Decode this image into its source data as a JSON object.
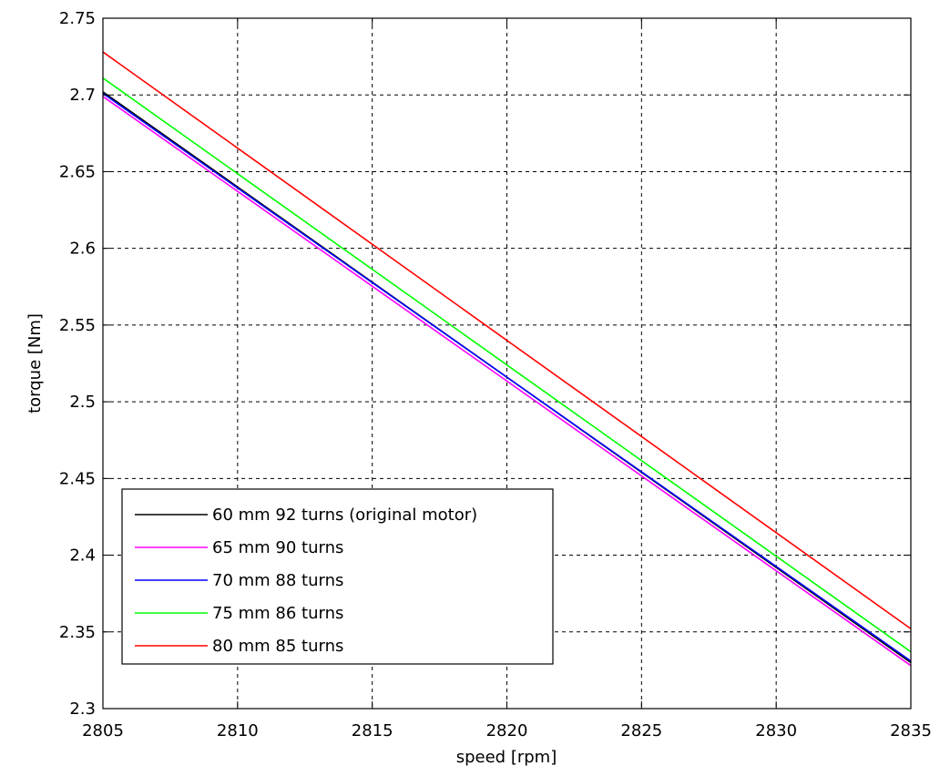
{
  "chart_data": {
    "type": "line",
    "title": "",
    "xlabel": "speed [rpm]",
    "ylabel": "torque [Nm]",
    "xlim": [
      2805,
      2835
    ],
    "ylim": [
      2.3,
      2.75
    ],
    "xticks": [
      "2805",
      "2810",
      "2815",
      "2820",
      "2825",
      "2830",
      "2835"
    ],
    "yticks": [
      "2.3",
      "2.35",
      "2.4",
      "2.45",
      "2.5",
      "2.55",
      "2.6",
      "2.65",
      "2.7",
      "2.75"
    ],
    "grid": true,
    "legend_position": "bottom-left",
    "series": [
      {
        "name": "60 mm 92 turns (original motor)",
        "color": "#000000",
        "x": [
          2805,
          2835
        ],
        "y": [
          2.702,
          2.33
        ]
      },
      {
        "name": "65 mm 90 turns",
        "color": "#ff00ff",
        "x": [
          2805,
          2835
        ],
        "y": [
          2.699,
          2.328
        ]
      },
      {
        "name": "70 mm 88 turns",
        "color": "#0000ff",
        "x": [
          2805,
          2835
        ],
        "y": [
          2.701,
          2.331
        ]
      },
      {
        "name": "75 mm 86 turns",
        "color": "#00ff00",
        "x": [
          2805,
          2835
        ],
        "y": [
          2.711,
          2.337
        ]
      },
      {
        "name": "80 mm 85 turns",
        "color": "#ff0000",
        "x": [
          2805,
          2835
        ],
        "y": [
          2.728,
          2.352
        ]
      }
    ]
  }
}
